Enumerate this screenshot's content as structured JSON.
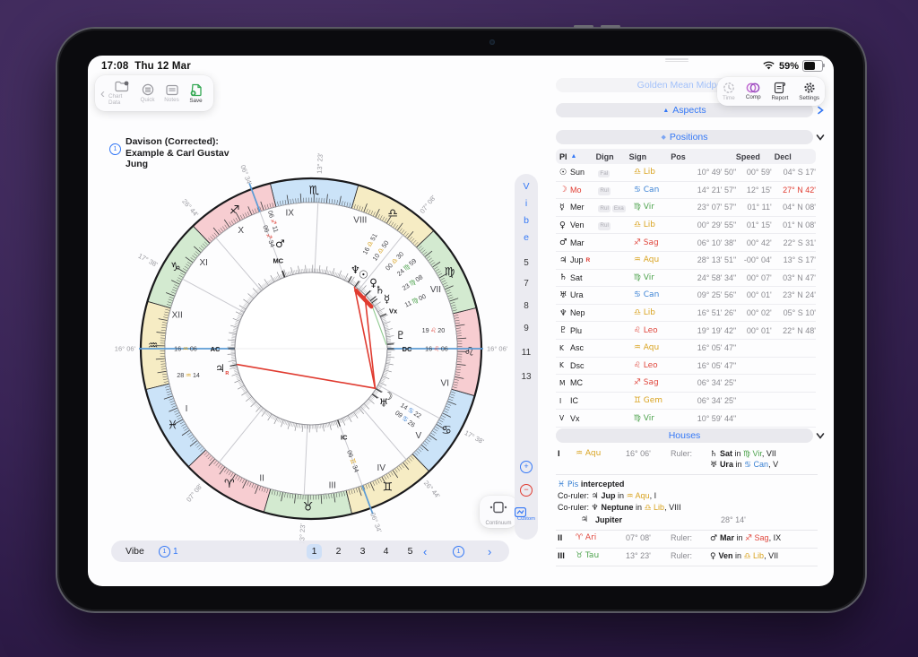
{
  "palette": {
    "accent_blue": "#3478f6",
    "axis_blue": "#5b9bd5",
    "alert_red": "#e0392e",
    "fire": "#e0473d",
    "earth": "#4ea34e",
    "air": "#d9a31f",
    "water": "#3b82d4",
    "band_fire": "#f7cdd1",
    "band_earth": "#d3ead0",
    "band_air": "#f6ecc4",
    "band_water": "#cbe3f8",
    "gray_text": "#8a8a90",
    "aspect_red": "#e03b30",
    "aspect_green": "#8fca8f"
  },
  "status": {
    "time": "17:08",
    "date": "Thu 12 Mar",
    "battery": "59%"
  },
  "toolbar_left": {
    "items": [
      {
        "label": "Chart Data"
      },
      {
        "label": "Quick"
      },
      {
        "label": "Notes"
      },
      {
        "label": "Save"
      }
    ]
  },
  "toolbar_right": {
    "items": [
      {
        "label": "Time"
      },
      {
        "label": "Comp"
      },
      {
        "label": "Report"
      },
      {
        "label": "Settings"
      }
    ]
  },
  "panel": {
    "faded_header": "Golden Mean Midpoint",
    "aspects_header": "Aspects",
    "positions_header": "Positions",
    "houses_header": "Houses"
  },
  "title": {
    "badge": "1",
    "lines": [
      "Davison (Corrected):",
      "Example & Carl Gustav",
      "Jung"
    ]
  },
  "signs": {
    "ari": {
      "glyph": "♈",
      "abbr": "Ari",
      "el": "fire"
    },
    "tau": {
      "glyph": "♉",
      "abbr": "Tau",
      "el": "earth"
    },
    "gem": {
      "glyph": "♊",
      "abbr": "Gem",
      "el": "air"
    },
    "can": {
      "glyph": "♋",
      "abbr": "Can",
      "el": "water"
    },
    "leo": {
      "glyph": "♌",
      "abbr": "Leo",
      "el": "fire"
    },
    "vir": {
      "glyph": "♍",
      "abbr": "Vir",
      "el": "earth"
    },
    "lib": {
      "glyph": "♎",
      "abbr": "Lib",
      "el": "air"
    },
    "sco": {
      "glyph": "♏",
      "abbr": "Sco",
      "el": "water"
    },
    "sag": {
      "glyph": "♐",
      "abbr": "Sag",
      "el": "fire"
    },
    "cap": {
      "glyph": "♑",
      "abbr": "Cap",
      "el": "earth"
    },
    "aqu": {
      "glyph": "♒",
      "abbr": "Aqu",
      "el": "air"
    },
    "pis": {
      "glyph": "♓",
      "abbr": "Pis",
      "el": "water"
    }
  },
  "positions": {
    "columns": [
      "Pl",
      "Dign",
      "Sign",
      "Pos",
      "Speed",
      "Decl"
    ],
    "rows": [
      {
        "glyph": "☉",
        "name": "Sun",
        "dign": [
          "Fal"
        ],
        "sign": "lib",
        "pos": "10° 49' 50\"",
        "speed": "00° 59'",
        "decl": "04° S 17'"
      },
      {
        "glyph": "☽",
        "name": "Mo",
        "red": true,
        "dign": [
          "Rul"
        ],
        "sign": "can",
        "pos": "14° 21' 57\"",
        "speed": "12° 15'",
        "decl": "27° N 42'",
        "decl_red": true
      },
      {
        "glyph": "☿",
        "name": "Mer",
        "dign": [
          "Rul",
          "Exa"
        ],
        "sign": "vir",
        "pos": "23° 07' 57\"",
        "speed": "01° 11'",
        "decl": "04° N 08'"
      },
      {
        "glyph": "♀",
        "name": "Ven",
        "dign": [
          "Rul"
        ],
        "sign": "lib",
        "pos": "00° 29' 55\"",
        "speed": "01° 15'",
        "decl": "01° N 08'"
      },
      {
        "glyph": "♂",
        "name": "Mar",
        "dign": [],
        "sign": "sag",
        "pos": "06° 10' 38\"",
        "speed": "00° 42'",
        "decl": "22° S 31'"
      },
      {
        "glyph": "♃",
        "name": "Jup",
        "retro": true,
        "dign": [],
        "sign": "aqu",
        "pos": "28° 13' 51\"",
        "speed": "-00° 04'",
        "decl": "13° S 17'"
      },
      {
        "glyph": "♄",
        "name": "Sat",
        "dign": [],
        "sign": "vir",
        "pos": "24° 58' 34\"",
        "speed": "00° 07'",
        "decl": "03° N 47'"
      },
      {
        "glyph": "♅",
        "name": "Ura",
        "dign": [],
        "sign": "can",
        "pos": "09° 25' 56\"",
        "speed": "00° 01'",
        "decl": "23° N 24'"
      },
      {
        "glyph": "♆",
        "name": "Nep",
        "dign": [],
        "sign": "lib",
        "pos": "16° 51' 26\"",
        "speed": "00° 02'",
        "decl": "05° S 10'"
      },
      {
        "glyph": "♇",
        "name": "Plu",
        "dign": [],
        "sign": "leo",
        "pos": "19° 19' 42\"",
        "speed": "00° 01'",
        "decl": "22° N 48'"
      },
      {
        "glyph": "K",
        "name": "Asc",
        "dign": [],
        "sign": "aqu",
        "pos": "16° 05' 47\"",
        "speed": "",
        "decl": ""
      },
      {
        "glyph": "K",
        "name": "Dsc",
        "dign": [],
        "sign": "leo",
        "pos": "16° 05' 47\"",
        "speed": "",
        "decl": ""
      },
      {
        "glyph": "M",
        "name": "MC",
        "dign": [],
        "sign": "sag",
        "pos": "06° 34' 25\"",
        "speed": "",
        "decl": ""
      },
      {
        "glyph": "I",
        "name": "IC",
        "dign": [],
        "sign": "gem",
        "pos": "06° 34' 25\"",
        "speed": "",
        "decl": ""
      },
      {
        "glyph": "V",
        "name": "Vx",
        "dign": [],
        "sign": "vir",
        "pos": "10° 59' 44\"",
        "speed": "",
        "decl": ""
      }
    ]
  },
  "houses": {
    "rows": [
      {
        "num": "I",
        "sign": "aqu",
        "deg": "16° 06'",
        "ruler_label": "Ruler:",
        "rulers": [
          [
            {
              "t": "♄ ",
              "a": 1
            },
            {
              "t": "Sat",
              "b": 1
            },
            {
              "t": " in "
            },
            {
              "t": "♍ Vir",
              "s": "vir"
            },
            {
              "t": ", VII"
            }
          ],
          [
            {
              "t": "♅ ",
              "a": 1
            },
            {
              "t": "Ura",
              "b": 1
            },
            {
              "t": " in "
            },
            {
              "t": "♋ Can",
              "s": "can"
            },
            {
              "t": ", V"
            }
          ]
        ]
      },
      {
        "block": true,
        "lines": [
          [
            {
              "t": "♓ Pis",
              "s": "pis",
              "a": 1
            },
            {
              "t": " intercepted",
              "b": 1
            }
          ],
          [
            {
              "t": "Co-ruler: "
            },
            {
              "t": "♃ ",
              "a": 1
            },
            {
              "t": "Jup",
              "b": 1
            },
            {
              "t": " in "
            },
            {
              "t": "♒ Aqu",
              "s": "aqu"
            },
            {
              "t": ", I"
            }
          ],
          [
            {
              "t": "Co-ruler: "
            },
            {
              "t": "♆ ",
              "a": 1
            },
            {
              "t": "Neptune",
              "b": 1
            },
            {
              "t": " in "
            },
            {
              "t": "♎ Lib",
              "s": "lib"
            },
            {
              "t": ", VIII"
            }
          ]
        ],
        "sub": {
          "glyph": "♃",
          "name": "Jupiter",
          "value": "28° 14'"
        }
      },
      {
        "num": "II",
        "sign": "ari",
        "deg": "07° 08'",
        "ruler_label": "Ruler:",
        "rulers": [
          [
            {
              "t": "♂ ",
              "a": 1
            },
            {
              "t": "Mar",
              "b": 1
            },
            {
              "t": " in "
            },
            {
              "t": "♐ Sag",
              "s": "sag"
            },
            {
              "t": ", IX"
            }
          ]
        ]
      },
      {
        "num": "III",
        "sign": "tau",
        "deg": "13° 23'",
        "ruler_label": "Ruler:",
        "rulers": [
          [
            {
              "t": "♀ ",
              "a": 1
            },
            {
              "t": "Ven",
              "b": 1
            },
            {
              "t": " in "
            },
            {
              "t": "♎ Lib",
              "s": "lib"
            },
            {
              "t": ", VII"
            }
          ]
        ]
      }
    ]
  },
  "side_strip": {
    "letters": [
      "V",
      "i",
      "b",
      "e"
    ],
    "numbers": [
      "5",
      "7",
      "8",
      "9",
      "11",
      "13"
    ],
    "plus": "+",
    "minus": "−",
    "custom_label": "Custom"
  },
  "bottom_bar": {
    "label": "Vibe",
    "counter": "1",
    "pages": [
      "1",
      "2",
      "3",
      "4",
      "5"
    ],
    "active_page": "1",
    "prev": "‹",
    "next": "›"
  },
  "continuum": {
    "label": "Continuum"
  },
  "chart_data": {
    "type": "astro_wheel",
    "title": "Davison (Corrected): Example & Carl Gustav Jung",
    "ascendant_lon": 316.1,
    "sign_order": [
      "ari",
      "tau",
      "gem",
      "can",
      "leo",
      "vir",
      "lib",
      "sco",
      "sag",
      "cap",
      "aqu",
      "pis"
    ],
    "house_numerals": [
      "I",
      "II",
      "III",
      "IV",
      "V",
      "VI",
      "VII",
      "VIII",
      "IX",
      "X",
      "XI",
      "XII"
    ],
    "house_cusps": [
      316.1,
      7.13,
      43.38,
      66.57,
      86.73,
      107.63,
      136.1,
      187.13,
      223.38,
      246.57,
      266.73,
      287.63
    ],
    "cusp_labels": [
      "16° 06'",
      "07° 08'",
      "13° 23'",
      "06° 34'",
      "26° 44'",
      "17° 38'",
      "16° 06'",
      "07° 08'",
      "13° 23'",
      "06° 34'",
      "26° 44'",
      "17° 38'"
    ],
    "bodies": [
      {
        "name": "Sun",
        "glyph": "☉",
        "lon": 190.83,
        "sign": "lib",
        "deg": "10",
        "min": "50",
        "lr": 134
      },
      {
        "name": "Moon",
        "glyph": "☽",
        "lon": 104.37,
        "sign": "can",
        "deg": "14",
        "min": "22",
        "lr": 131
      },
      {
        "name": "Mercury",
        "glyph": "☿",
        "lon": 173.13,
        "dlon": 169.3,
        "sign": "vir",
        "deg": "23",
        "min": "08",
        "lr": 135
      },
      {
        "name": "Venus",
        "glyph": "♀",
        "lon": 180.5,
        "dlon": 182.6,
        "sign": "lib",
        "deg": "00",
        "min": "30",
        "lr": 135
      },
      {
        "name": "Mars",
        "glyph": "♂",
        "lon": 246.18,
        "dlon": 242.6,
        "gr": 122,
        "lr": 148,
        "sign": "sag",
        "deg": "06",
        "min": "11"
      },
      {
        "name": "Jupiter",
        "glyph": "♃",
        "lon": 328.23,
        "retro": true,
        "horiz": true,
        "gr": 104,
        "lr": 140,
        "sign": "aqu",
        "deg": "28",
        "min": "14"
      },
      {
        "name": "Saturn",
        "glyph": "♄",
        "lon": 174.98,
        "dlon": 176.6,
        "sign": "vir",
        "deg": "24",
        "min": "59",
        "lr": 140
      },
      {
        "name": "Uranus",
        "glyph": "♅",
        "lon": 99.43,
        "sign": "can",
        "deg": "09",
        "min": "26",
        "lr": 131
      },
      {
        "name": "Neptune",
        "glyph": "♆",
        "lon": 196.86,
        "sign": "lib",
        "deg": "16",
        "min": "51",
        "lr": 134
      },
      {
        "name": "Pluto",
        "glyph": "♇",
        "lon": 139.33,
        "dlon": 144.7,
        "horiz": true,
        "lr": 138,
        "sign": "leo",
        "deg": "19",
        "min": "20"
      },
      {
        "name": "Asc",
        "glyph": "AC",
        "axis": true,
        "horiz": true,
        "gr": 107,
        "lr": 140,
        "lon": 316.1,
        "sign": "aqu",
        "deg": "16",
        "min": "06"
      },
      {
        "name": "Dsc",
        "glyph": "DC",
        "axis": true,
        "horiz": true,
        "gr": 107,
        "lr": 140,
        "lon": 136.1,
        "sign": "leo",
        "deg": "16",
        "min": "06"
      },
      {
        "name": "MC",
        "glyph": "MC",
        "axis": true,
        "gr": 105,
        "lr": 134,
        "lon": 246.57,
        "sign": "sag",
        "deg": "06",
        "min": "34"
      },
      {
        "name": "IC",
        "glyph": "IC",
        "axis": true,
        "gr": 105,
        "lr": 134,
        "lon": 66.57,
        "sign": "gem",
        "deg": "06",
        "min": "34"
      },
      {
        "name": "Vx",
        "glyph": "Vx",
        "axis": true,
        "gr": 101,
        "lr": 128,
        "lon": 160.995,
        "sign": "vir",
        "deg": "11",
        "min": "00"
      }
    ],
    "aspects": [
      {
        "a": 180.5,
        "b": 104.37,
        "color": "aspect_red",
        "w": 1.6
      },
      {
        "a": 190.83,
        "b": 104.37,
        "color": "aspect_red",
        "w": 1.6
      },
      {
        "a": 328.23,
        "b": 104.37,
        "color": "aspect_red",
        "w": 1.6
      },
      {
        "a": 173.13,
        "b": 139.33,
        "color": "aspect_green",
        "w": 1.1
      },
      {
        "a": 188.2,
        "b": 171.0,
        "color": "aspect_red",
        "w": 4.5,
        "r": 82
      }
    ]
  }
}
